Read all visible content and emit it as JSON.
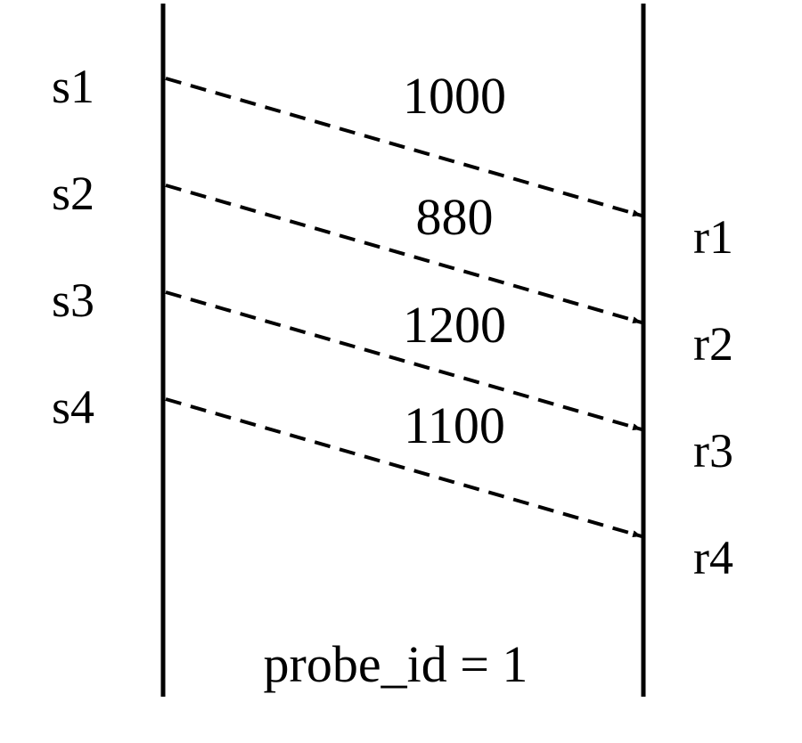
{
  "sender_labels": [
    "s1",
    "s2",
    "s3",
    "s4"
  ],
  "receiver_labels": [
    "r1",
    "r2",
    "r3",
    "r4"
  ],
  "messages": [
    {
      "from": "s1",
      "to": "r1",
      "label": "1000"
    },
    {
      "from": "s2",
      "to": "r2",
      "label": "880"
    },
    {
      "from": "s3",
      "to": "r3",
      "label": "1200"
    },
    {
      "from": "s4",
      "to": "r4",
      "label": "1100"
    }
  ],
  "footer": "probe_id = 1",
  "colors": {
    "line": "#000000",
    "background": "#ffffff"
  }
}
